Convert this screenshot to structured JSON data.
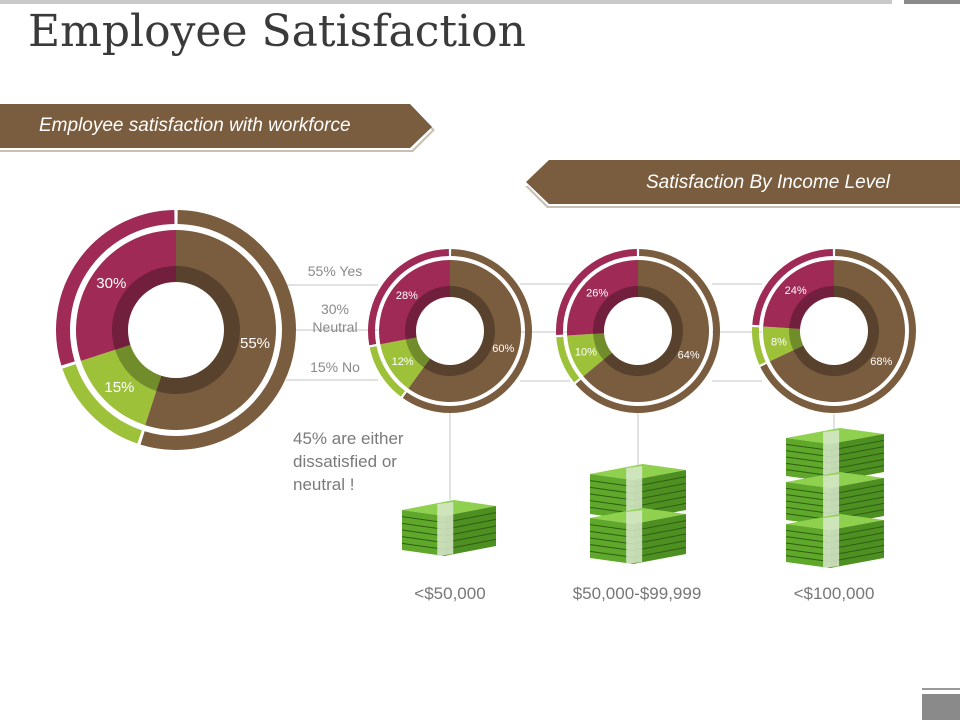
{
  "title": "Employee Satisfaction",
  "ribbon_left": "Employee satisfaction with workforce",
  "ribbon_right": "Satisfaction By Income Level",
  "note": "45% are either dissatisfied or neutral !",
  "legend": {
    "yes": "55% Yes",
    "neutral_pct": "30%",
    "neutral_word": "Neutral",
    "no": "15% No"
  },
  "colors": {
    "yes": "#7a5c3e",
    "neutral": "#9e2a55",
    "no": "#9dc23a",
    "ribbon": "#7a5c3e",
    "money": "#5fa82b"
  },
  "chart_data": [
    {
      "type": "pie",
      "title": "",
      "categories": [
        "Yes",
        "Neutral",
        "No"
      ],
      "values": [
        55,
        30,
        15
      ],
      "labels": [
        "55%",
        "30%",
        "15%"
      ]
    },
    {
      "type": "pie",
      "title": "<$50,000",
      "categories": [
        "Yes",
        "Neutral",
        "No"
      ],
      "values": [
        60,
        28,
        12
      ],
      "labels": [
        "60%",
        "28%",
        "12%"
      ]
    },
    {
      "type": "pie",
      "title": "$50,000-$99,999",
      "categories": [
        "Yes",
        "Neutral",
        "No"
      ],
      "values": [
        64,
        26,
        10
      ],
      "labels": [
        "64%",
        "26%",
        "10%"
      ]
    },
    {
      "type": "pie",
      "title": "<$100,000",
      "categories": [
        "Yes",
        "Neutral",
        "No"
      ],
      "values": [
        68,
        24,
        8
      ],
      "labels": [
        "68%",
        "24%",
        "8%"
      ]
    }
  ]
}
